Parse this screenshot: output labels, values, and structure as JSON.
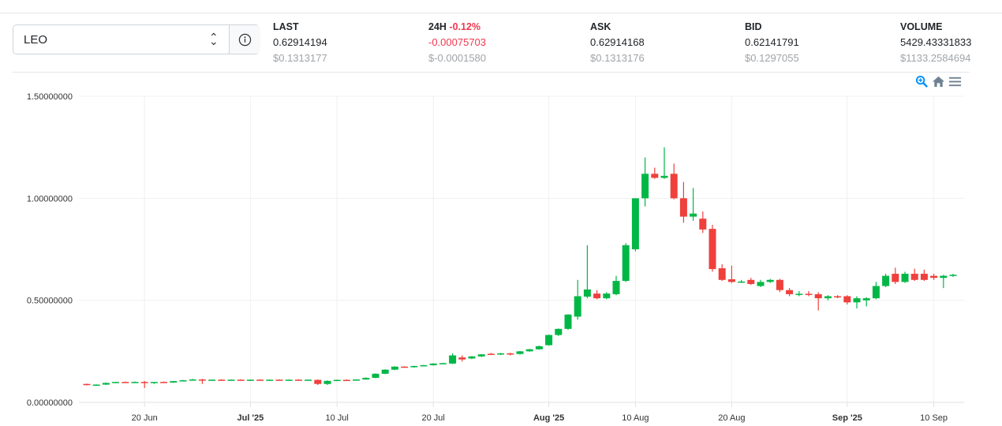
{
  "market": {
    "symbol": "LEO"
  },
  "stats": [
    {
      "label": "LAST",
      "value": "0.62914194",
      "usd": "$0.1313177"
    },
    {
      "label": "24H",
      "pct": "-0.12%",
      "value": "-0.00075703",
      "usd": "$-0.0001580"
    },
    {
      "label": "ASK",
      "value": "0.62914168",
      "usd": "$0.1313176"
    },
    {
      "label": "BID",
      "value": "0.62141791",
      "usd": "$0.1297055"
    },
    {
      "label": "VOLUME",
      "value": "5429.43331833",
      "usd": "$1133.2584694"
    }
  ],
  "colors": {
    "up": "#00b746",
    "down": "#ef403c",
    "negative": "#f0384f"
  },
  "chart_data": {
    "type": "candlestick",
    "first_date": "14 Jun 2025",
    "ylim": [
      0,
      1.5
    ],
    "yticks": [
      {
        "v": 0,
        "label": "0.00000000"
      },
      {
        "v": 0.5,
        "label": "0.50000000"
      },
      {
        "v": 1,
        "label": "1.00000000"
      },
      {
        "v": 1.5,
        "label": "1.50000000"
      }
    ],
    "xticks": [
      {
        "i": 6,
        "label": "20 Jun"
      },
      {
        "i": 17,
        "label": "Jul '25",
        "bold": true
      },
      {
        "i": 26,
        "label": "10 Jul"
      },
      {
        "i": 36,
        "label": "20 Jul"
      },
      {
        "i": 48,
        "label": "Aug '25",
        "bold": true
      },
      {
        "i": 57,
        "label": "10 Aug"
      },
      {
        "i": 67,
        "label": "20 Aug"
      },
      {
        "i": 79,
        "label": "Sep '25",
        "bold": true
      },
      {
        "i": 88,
        "label": "10 Sep"
      }
    ],
    "ohlc": [
      [
        0.09,
        0.092,
        0.083,
        0.085
      ],
      [
        0.085,
        0.088,
        0.082,
        0.087
      ],
      [
        0.087,
        0.097,
        0.085,
        0.095
      ],
      [
        0.095,
        0.1,
        0.094,
        0.1
      ],
      [
        0.1,
        0.102,
        0.097,
        0.098
      ],
      [
        0.098,
        0.102,
        0.097,
        0.1
      ],
      [
        0.1,
        0.105,
        0.07,
        0.095
      ],
      [
        0.095,
        0.1,
        0.09,
        0.1
      ],
      [
        0.1,
        0.102,
        0.095,
        0.097
      ],
      [
        0.097,
        0.105,
        0.096,
        0.104
      ],
      [
        0.104,
        0.11,
        0.103,
        0.108
      ],
      [
        0.108,
        0.115,
        0.107,
        0.112
      ],
      [
        0.112,
        0.115,
        0.09,
        0.11
      ],
      [
        0.11,
        0.112,
        0.108,
        0.111
      ],
      [
        0.111,
        0.113,
        0.109,
        0.11
      ],
      [
        0.11,
        0.112,
        0.108,
        0.111
      ],
      [
        0.111,
        0.113,
        0.109,
        0.11
      ],
      [
        0.11,
        0.112,
        0.108,
        0.111
      ],
      [
        0.111,
        0.113,
        0.109,
        0.11
      ],
      [
        0.11,
        0.112,
        0.108,
        0.111
      ],
      [
        0.111,
        0.113,
        0.109,
        0.11
      ],
      [
        0.11,
        0.112,
        0.108,
        0.111
      ],
      [
        0.111,
        0.113,
        0.109,
        0.11
      ],
      [
        0.11,
        0.112,
        0.108,
        0.111
      ],
      [
        0.11,
        0.112,
        0.085,
        0.09
      ],
      [
        0.09,
        0.108,
        0.085,
        0.105
      ],
      [
        0.105,
        0.111,
        0.104,
        0.11
      ],
      [
        0.11,
        0.112,
        0.108,
        0.109
      ],
      [
        0.109,
        0.113,
        0.108,
        0.112
      ],
      [
        0.112,
        0.122,
        0.111,
        0.12
      ],
      [
        0.12,
        0.142,
        0.118,
        0.14
      ],
      [
        0.14,
        0.162,
        0.138,
        0.16
      ],
      [
        0.16,
        0.177,
        0.158,
        0.175
      ],
      [
        0.175,
        0.177,
        0.17,
        0.172
      ],
      [
        0.172,
        0.18,
        0.17,
        0.178
      ],
      [
        0.178,
        0.184,
        0.176,
        0.182
      ],
      [
        0.182,
        0.192,
        0.18,
        0.19
      ],
      [
        0.19,
        0.194,
        0.188,
        0.192
      ],
      [
        0.19,
        0.24,
        0.188,
        0.23
      ],
      [
        0.22,
        0.23,
        0.2,
        0.21
      ],
      [
        0.215,
        0.227,
        0.212,
        0.225
      ],
      [
        0.225,
        0.237,
        0.222,
        0.235
      ],
      [
        0.238,
        0.242,
        0.232,
        0.235
      ],
      [
        0.235,
        0.242,
        0.232,
        0.24
      ],
      [
        0.24,
        0.243,
        0.23,
        0.235
      ],
      [
        0.237,
        0.252,
        0.234,
        0.25
      ],
      [
        0.25,
        0.262,
        0.248,
        0.26
      ],
      [
        0.26,
        0.278,
        0.258,
        0.275
      ],
      [
        0.28,
        0.332,
        0.278,
        0.33
      ],
      [
        0.33,
        0.362,
        0.325,
        0.36
      ],
      [
        0.36,
        0.432,
        0.355,
        0.43
      ],
      [
        0.42,
        0.6,
        0.405,
        0.52
      ],
      [
        0.518,
        0.77,
        0.51,
        0.553
      ],
      [
        0.533,
        0.55,
        0.505,
        0.51
      ],
      [
        0.51,
        0.54,
        0.505,
        0.533
      ],
      [
        0.53,
        0.62,
        0.525,
        0.595
      ],
      [
        0.595,
        0.78,
        0.59,
        0.77
      ],
      [
        0.75,
        1.0,
        0.74,
        1.0
      ],
      [
        1.0,
        1.2,
        0.96,
        1.12
      ],
      [
        1.12,
        1.15,
        1.095,
        1.1
      ],
      [
        1.1,
        1.25,
        1.095,
        1.11
      ],
      [
        1.12,
        1.17,
        0.995,
        1.0
      ],
      [
        1.0,
        1.08,
        0.88,
        0.91
      ],
      [
        0.91,
        1.05,
        0.89,
        0.925
      ],
      [
        0.9,
        0.935,
        0.83,
        0.847
      ],
      [
        0.85,
        0.87,
        0.64,
        0.653
      ],
      [
        0.657,
        0.677,
        0.595,
        0.6
      ],
      [
        0.603,
        0.67,
        0.585,
        0.59
      ],
      [
        0.59,
        0.6,
        0.585,
        0.592
      ],
      [
        0.6,
        0.61,
        0.575,
        0.58
      ],
      [
        0.57,
        0.6,
        0.565,
        0.59
      ],
      [
        0.59,
        0.605,
        0.585,
        0.6
      ],
      [
        0.6,
        0.605,
        0.54,
        0.55
      ],
      [
        0.55,
        0.56,
        0.52,
        0.53
      ],
      [
        0.53,
        0.545,
        0.52,
        0.532
      ],
      [
        0.532,
        0.545,
        0.52,
        0.53
      ],
      [
        0.53,
        0.54,
        0.45,
        0.51
      ],
      [
        0.51,
        0.525,
        0.5,
        0.52
      ],
      [
        0.52,
        0.525,
        0.51,
        0.515
      ],
      [
        0.52,
        0.525,
        0.48,
        0.49
      ],
      [
        0.49,
        0.52,
        0.46,
        0.51
      ],
      [
        0.5,
        0.515,
        0.47,
        0.51
      ],
      [
        0.51,
        0.59,
        0.505,
        0.57
      ],
      [
        0.57,
        0.63,
        0.565,
        0.62
      ],
      [
        0.63,
        0.66,
        0.58,
        0.59
      ],
      [
        0.59,
        0.64,
        0.585,
        0.63
      ],
      [
        0.63,
        0.655,
        0.595,
        0.6
      ],
      [
        0.63,
        0.65,
        0.595,
        0.6
      ],
      [
        0.62,
        0.63,
        0.6,
        0.61
      ],
      [
        0.61,
        0.625,
        0.56,
        0.62
      ],
      [
        0.62,
        0.63,
        0.615,
        0.625
      ]
    ]
  }
}
